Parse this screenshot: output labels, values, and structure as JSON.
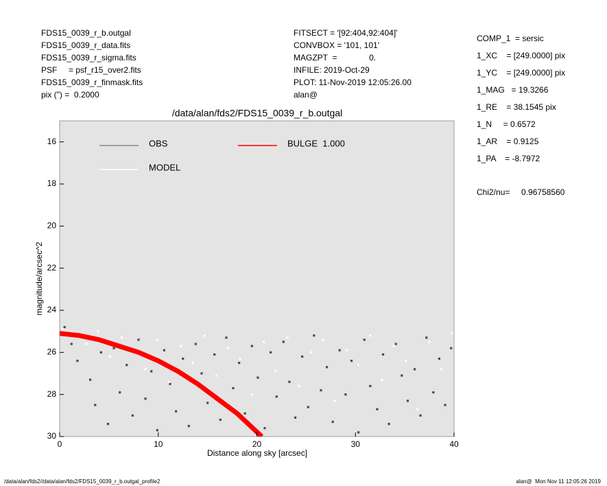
{
  "header": {
    "left": [
      "FDS15_0039_r_b.outgal",
      "FDS15_0039_r_data.fits",
      "FDS15_0039_r_sigma.fits",
      "PSF     = psf_r15_over2.fits",
      "FDS15_0039_r_finmask.fits",
      "pix (\") =  0.2000"
    ],
    "middle": [
      "FITSECT = '[92:404,92:404]'",
      "CONVBOX = '101, 101'",
      "MAGZPT  =              0.",
      "INFILE: 2019-Oct-29",
      "PLOT: 11-Nov-2019 12:05:26.00",
      "alan@"
    ],
    "right": [
      "COMP_1  = sersic",
      "1_XC    = [249.0000] pix",
      "1_YC    = [249.0000] pix",
      "1_MAG   = 19.3266",
      "1_RE    = 38.1545 pix",
      "1_N     = 0.6572",
      "1_AR    = 0.9125",
      "1_PA    = -8.7972"
    ],
    "chi2": "Chi2/nu=     0.96758560"
  },
  "chart_data": {
    "type": "scatter",
    "title": "/data/alan/fds2/FDS15_0039_r_b.outgal",
    "x_label": "Distance along sky [arcsec]",
    "y_label": "magnitude/arcsec^2",
    "xlim": [
      0,
      40
    ],
    "ylim": [
      30,
      15
    ],
    "xticks": [
      0,
      10,
      20,
      30,
      40
    ],
    "yticks": [
      16,
      18,
      20,
      22,
      24,
      26,
      28,
      30
    ],
    "background": "#e4e4e4",
    "series": [
      {
        "name": "OBS",
        "color": "#4a4a4a",
        "mode": "points",
        "x": [
          0.5,
          1.2,
          1.8,
          2.5,
          3.1,
          3.6,
          4.2,
          4.9,
          5.5,
          6.1,
          6.8,
          7.4,
          8.0,
          8.7,
          9.3,
          9.9,
          10.6,
          11.2,
          11.8,
          12.5,
          13.1,
          13.8,
          14.4,
          15.0,
          15.7,
          16.3,
          16.9,
          17.6,
          18.2,
          18.8,
          19.5,
          20.1,
          20.8,
          21.4,
          22.0,
          22.7,
          23.3,
          23.9,
          24.6,
          25.2,
          25.8,
          26.5,
          27.1,
          27.7,
          28.4,
          29.0,
          29.6,
          30.3,
          30.9,
          31.5,
          32.2,
          32.8,
          33.4,
          34.1,
          34.7,
          35.3,
          36.0,
          36.6,
          37.2,
          37.9,
          38.5,
          39.1,
          39.7
        ],
        "values": [
          24.8,
          25.6,
          26.4,
          25.2,
          27.3,
          28.5,
          26.0,
          29.4,
          25.8,
          27.9,
          26.6,
          29.0,
          25.4,
          28.2,
          26.9,
          29.7,
          25.9,
          27.5,
          28.8,
          26.3,
          29.5,
          25.6,
          27.0,
          28.4,
          26.1,
          29.2,
          25.3,
          27.7,
          26.5,
          28.9,
          25.7,
          27.2,
          29.6,
          26.0,
          28.1,
          25.5,
          27.4,
          29.1,
          26.2,
          28.6,
          25.2,
          27.8,
          26.7,
          29.3,
          25.9,
          28.0,
          26.4,
          29.8,
          25.4,
          27.6,
          28.7,
          26.1,
          29.4,
          25.6,
          27.1,
          28.3,
          26.8,
          29.0,
          25.3,
          27.9,
          26.3,
          28.5,
          25.8
        ]
      },
      {
        "name": "MODEL",
        "color": "#ffffff",
        "mode": "points",
        "x": [
          0.3,
          1.5,
          2.7,
          3.9,
          5.1,
          6.3,
          7.5,
          8.7,
          9.9,
          11.1,
          12.3,
          13.5,
          14.7,
          15.9,
          17.1,
          18.3,
          19.5,
          20.7,
          21.9,
          23.1,
          24.3,
          25.5,
          26.7,
          27.9,
          29.1,
          30.3,
          31.5,
          32.7,
          33.9,
          35.1,
          36.3,
          37.5,
          38.7,
          39.8
        ],
        "values": [
          24.9,
          25.1,
          25.6,
          25.0,
          26.2,
          25.3,
          25.9,
          26.8,
          25.4,
          27.4,
          25.7,
          26.5,
          25.2,
          27.1,
          25.8,
          26.3,
          28.0,
          25.5,
          26.9,
          25.3,
          27.6,
          26.0,
          25.4,
          28.3,
          25.9,
          26.6,
          25.2,
          27.3,
          25.7,
          26.4,
          28.7,
          25.5,
          26.8,
          25.1
        ]
      },
      {
        "name": "BULGE  1.000",
        "color": "#ff0000",
        "mode": "line",
        "x": [
          0,
          2,
          4,
          6,
          8,
          10,
          12,
          14,
          16,
          18,
          20.5
        ],
        "values": [
          25.1,
          25.2,
          25.4,
          25.7,
          26.0,
          26.4,
          26.9,
          27.5,
          28.2,
          28.9,
          30.0
        ]
      }
    ]
  },
  "footer": {
    "left": "/data/alan/fds2//data/alan/fds2/FDS15_0039_r_b.outgal_profile2",
    "right": "alan@  Mon Nov 11 12:05:26 2019"
  }
}
